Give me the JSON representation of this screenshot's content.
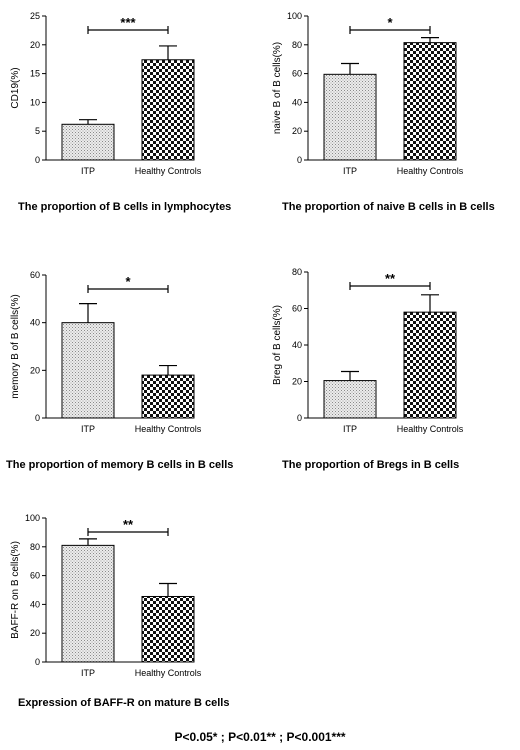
{
  "chart_data": [
    {
      "type": "bar",
      "title": "The proportion of B cells in lymphocytes",
      "ylabel": "CD19(%)",
      "categories": [
        "ITP",
        "Healthy Controls"
      ],
      "values": [
        6.2,
        17.4
      ],
      "errors": [
        0.8,
        2.4
      ],
      "ylim": [
        0,
        25
      ],
      "yticks": [
        0,
        5,
        10,
        15,
        20,
        25
      ],
      "significance": "***",
      "grid": false
    },
    {
      "type": "bar",
      "title": "The proportion of naive B cells in B cells",
      "ylabel": "naive B of B cells(%)",
      "categories": [
        "ITP",
        "Healthy Controls"
      ],
      "values": [
        59.5,
        81.5
      ],
      "errors": [
        7.5,
        3.5
      ],
      "ylim": [
        0,
        100
      ],
      "yticks": [
        0,
        20,
        40,
        60,
        80,
        100
      ],
      "significance": "*",
      "grid": false
    },
    {
      "type": "bar",
      "title": "The proportion of memory B cells in B cells",
      "ylabel": "memory B of B cells(%)",
      "categories": [
        "ITP",
        "Healthy Controls"
      ],
      "values": [
        40,
        18
      ],
      "errors": [
        8,
        4
      ],
      "ylim": [
        0,
        60
      ],
      "yticks": [
        0,
        20,
        40,
        60
      ],
      "significance": "*",
      "grid": false
    },
    {
      "type": "bar",
      "title": "The proportion of Bregs in B cells",
      "ylabel": "Breg of B cells(%)",
      "categories": [
        "ITP",
        "Healthy Controls"
      ],
      "values": [
        20.5,
        58
      ],
      "errors": [
        5,
        9.5
      ],
      "ylim": [
        0,
        80
      ],
      "yticks": [
        0,
        20,
        40,
        60,
        80
      ],
      "significance": "**",
      "grid": false
    },
    {
      "type": "bar",
      "title": "Expression of BAFF-R on mature B cells",
      "ylabel": "BAFF-R on B cells(%)",
      "categories": [
        "ITP",
        "Healthy Controls"
      ],
      "values": [
        81,
        45.5
      ],
      "errors": [
        4.5,
        9
      ],
      "ylim": [
        0,
        100
      ],
      "yticks": [
        0,
        20,
        40,
        60,
        80,
        100
      ],
      "significance": "**",
      "grid": false
    }
  ],
  "footnote": "P<0.05* ; P<0.01** ; P<0.001***"
}
